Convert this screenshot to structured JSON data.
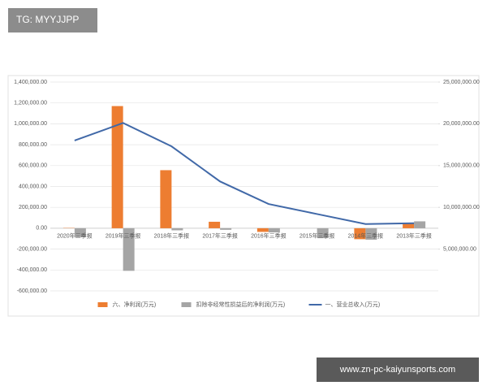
{
  "watermarks": {
    "top": "TG: MYYJJPP",
    "bottom": "www.zn-pc-kaiyunsports.com"
  },
  "chart_data": {
    "type": "bar-line",
    "categories": [
      "2020年三季报",
      "2019年三季报",
      "2018年三季报",
      "2017年三季报",
      "2016年三季报",
      "2015年三季报",
      "2014年三季报",
      "2013年三季报"
    ],
    "series": [
      {
        "name": "六、净利润(万元)",
        "type": "bar",
        "color": "#ed7d31",
        "values": [
          3000,
          1170000,
          556000,
          62000,
          -35000,
          0,
          -105000,
          43000
        ]
      },
      {
        "name": "扣除非经常性损益后的净利润(万元)",
        "type": "bar",
        "color": "#a5a5a5",
        "values": [
          -85000,
          -408000,
          -20000,
          -15000,
          -40000,
          -95000,
          -110000,
          66000
        ]
      },
      {
        "name": "一、营业总收入(万元)",
        "type": "line",
        "axis": "y2",
        "color": "#4169a8",
        "values": [
          18000000,
          20100000,
          17300000,
          13100000,
          10400000,
          9200000,
          8000000,
          8100000
        ]
      }
    ],
    "ylim": [
      -600000,
      1400000
    ],
    "yticks": [
      {
        "value": -600000,
        "label": "-600,000.00"
      },
      {
        "value": -400000,
        "label": "-400,000.00"
      },
      {
        "value": -200000,
        "label": "-200,000.00"
      },
      {
        "value": 0,
        "label": "0.00"
      },
      {
        "value": 200000,
        "label": "200,000.00"
      },
      {
        "value": 400000,
        "label": "400,000.00"
      },
      {
        "value": 600000,
        "label": "600,000.00"
      },
      {
        "value": 800000,
        "label": "800,000.00"
      },
      {
        "value": 1000000,
        "label": "1,000,000.00"
      },
      {
        "value": 1200000,
        "label": "1,200,000.00"
      },
      {
        "value": 1400000,
        "label": "1,400,000.00"
      }
    ],
    "y2lim": [
      0,
      25000000
    ],
    "y2ticks": [
      {
        "value": 5000000,
        "label": "5,000,000.00"
      },
      {
        "value": 10000000,
        "label": "10,000,000.00"
      },
      {
        "value": 15000000,
        "label": "15,000,000.00"
      },
      {
        "value": 20000000,
        "label": "20,000,000.00"
      },
      {
        "value": 25000000,
        "label": "25,000,000.00"
      }
    ],
    "grid": true,
    "legend": "bottom"
  }
}
